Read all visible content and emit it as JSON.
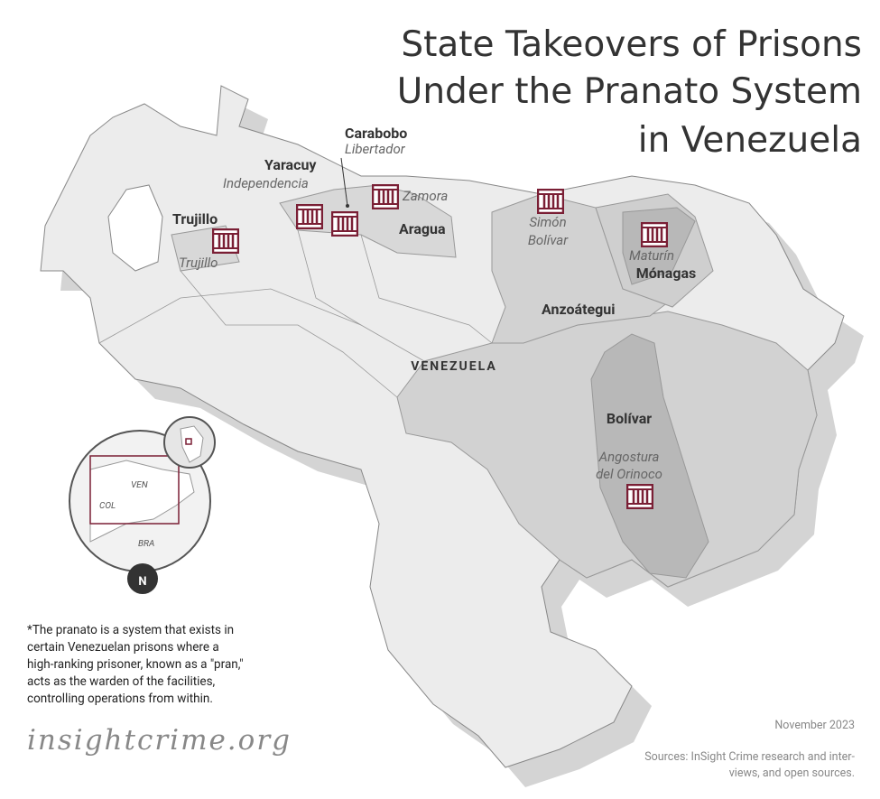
{
  "title_lines": [
    "State Takeovers of Prisons",
    "Under the Pranato System",
    "in Venezuela"
  ],
  "country_label": "VENEZUELA",
  "labels": {
    "carabobo": {
      "state": "Carabobo",
      "municipality": [
        "Libertador"
      ]
    },
    "yaracuy": {
      "state": "Yaracuy",
      "municipality": [
        "Independencia"
      ]
    },
    "trujillo": {
      "state": "Trujillo",
      "municipality": [
        "Trujillo"
      ]
    },
    "aragua": {
      "state": "Aragua",
      "municipality": [
        "Zamora"
      ]
    },
    "anzoategui": {
      "state": "Anzoátegui",
      "municipality": [
        "Simón",
        "Bolívar"
      ]
    },
    "monagas": {
      "state": "Mónagas",
      "municipality": [
        "Maturín"
      ]
    },
    "bolivar": {
      "state": "Bolívar",
      "municipality": [
        "Angostura",
        "del Orinoco"
      ]
    }
  },
  "inset": {
    "countries": [
      "VEN",
      "COL",
      "BRA"
    ],
    "north": "N"
  },
  "footnote_lines": [
    "*The pranato is a system that exists in",
    "certain Venezuelan prisons where a",
    "high-ranking prisoner, known as a \"pran,\"",
    "acts as the warden of the facilities,",
    "controlling operations from within."
  ],
  "logo": "insightcrime.org",
  "date": "November 2023",
  "sources_lines": [
    "Sources: InSight Crime research and inter-",
    "views, and open sources."
  ]
}
